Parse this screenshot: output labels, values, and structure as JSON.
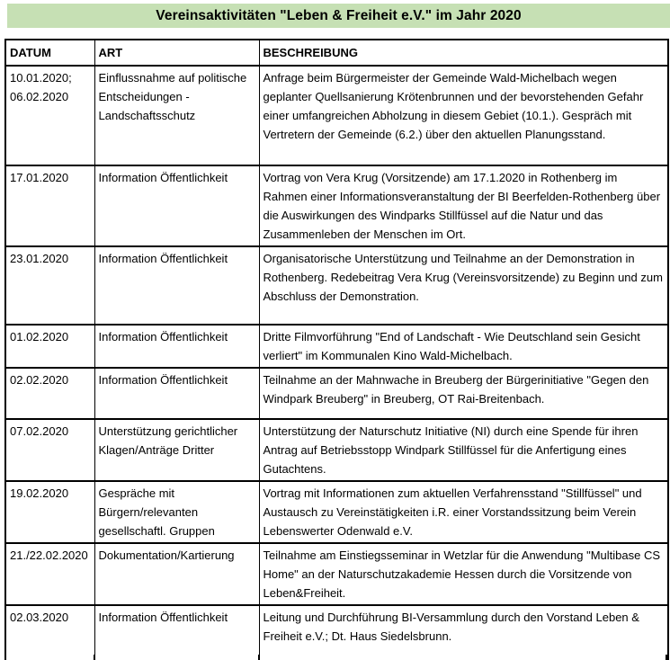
{
  "title": "Vereinsaktivitäten \"Leben & Freiheit e.V.\" im Jahr 2020",
  "table": {
    "columns": [
      "DATUM",
      "ART",
      "BESCHREIBUNG"
    ],
    "rows": [
      {
        "datum": "10.01.2020; 06.02.2020",
        "art": "Einflussnahme auf politische Entscheidungen - Landschaftsschutz",
        "beschreibung": "Anfrage beim Bürgermeister der Gemeinde Wald-Michelbach wegen geplanter Quellsanierung Krötenbrunnen und der bevorstehenden Gefahr einer umfangreichen Abholzung in diesem Gebiet (10.1.). Gespräch mit Vertretern der Gemeinde (6.2.) über den aktuellen Planungsstand."
      },
      {
        "datum": "17.01.2020",
        "art": "Information Öffentlichkeit",
        "beschreibung": "Vortrag von Vera Krug (Vorsitzende) am 17.1.2020 in Rothenberg im Rahmen einer Informationsveranstaltung der BI Beerfelden-Rothenberg über die Auswirkungen des Windparks Stillfüssel auf die Natur und das Zusammenleben der Menschen im Ort."
      },
      {
        "datum": "23.01.2020",
        "art": "Information Öffentlichkeit",
        "beschreibung": "Organisatorische Unterstützung und Teilnahme an der Demonstration in Rothenberg. Redebeitrag Vera Krug (Vereinsvorsitzende) zu Beginn und zum Abschluss der Demonstration."
      },
      {
        "datum": "01.02.2020",
        "art": "Information Öffentlichkeit",
        "beschreibung": "Dritte Filmvorführung \"End of Landschaft - Wie Deutschland sein Gesicht verliert\" im Kommunalen Kino Wald-Michelbach."
      },
      {
        "datum": "02.02.2020",
        "art": "Information Öffentlichkeit",
        "beschreibung": "Teilnahme an der Mahnwache in Breuberg der Bürgerinitiative \"Gegen den Windpark Breuberg\" in Breuberg, OT Rai-Breitenbach."
      },
      {
        "datum": "07.02.2020",
        "art": "Unterstützung gerichtlicher Klagen/Anträge Dritter",
        "beschreibung": "Unterstützung der Naturschutz Initiative (NI) durch eine Spende für ihren Antrag auf Betriebsstopp Windpark Stillfüssel für die Anfertigung eines Gutachtens."
      },
      {
        "datum": "19.02.2020",
        "art": "Gespräche mit Bürgern/relevanten gesellschaftl. Gruppen",
        "beschreibung": "Vortrag mit Informationen zum aktuellen Verfahrensstand \"Stillfüssel\" und Austausch zu Vereinstätigkeiten i.R. einer Vorstandssitzung beim Verein Lebenswerter Odenwald e.V."
      },
      {
        "datum": "21./22.02.2020",
        "art": "Dokumentation/Kartierung",
        "beschreibung": "Teilnahme am Einstiegsseminar in Wetzlar für die Anwendung \"Multibase CS Home\" an der Naturschutzakademie Hessen durch die Vorsitzende von Leben&Freiheit."
      },
      {
        "datum": "02.03.2020",
        "art": "Information Öffentlichkeit",
        "beschreibung": "Leitung und Durchführung BI-Versammlung durch den Vorstand Leben & Freiheit e.V.; Dt. Haus Siedelsbrunn."
      }
    ]
  },
  "colors": {
    "title_background": "#c6e0b4",
    "border": "#000000",
    "text": "#000000"
  }
}
